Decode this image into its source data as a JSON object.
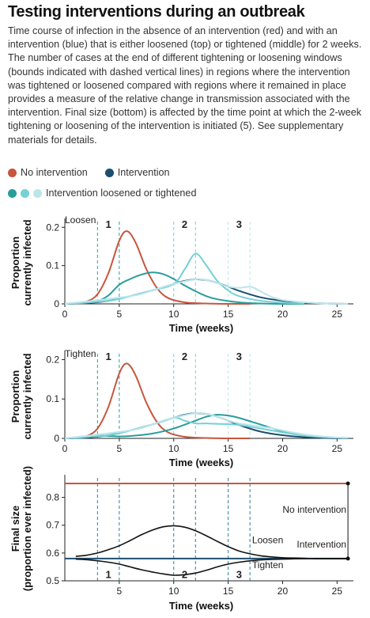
{
  "header": {
    "title": "Testing interventions during an outbreak",
    "caption": "Time course of infection in the absence of an intervention (red) and with an intervention (blue) that is either loosened (top) or tightened (middle) for 2 weeks. The number of cases at the end of different tightening or loosening windows (bounds indicated with dashed vertical lines) in regions where the intervention was tightened or loosened compared with regions where it remained in place provides a measure of the relative change in transmission associated with the intervention. Final size (bottom) is affected by the time point at which the 2-week tightening or loosening of the intervention is initiated (5). See supplementary materials for details."
  },
  "legend": {
    "no_intervention": "No intervention",
    "intervention": "Intervention",
    "window": "Intervention loosened or tightened"
  },
  "colors": {
    "no_intervention": "#c8553d",
    "intervention": "#1d4e6e",
    "window_1": "#2a9d9a",
    "window_2": "#76d0d4",
    "window_3": "#b9e6ec",
    "baseline": "#1d4e6e",
    "final_curve": "#111111"
  },
  "chart_data": [
    {
      "type": "line",
      "panel": "Loosen",
      "xlabel": "Time (weeks)",
      "ylabel": "Proportion currently infected",
      "xlim": [
        0,
        26.5
      ],
      "ylim": [
        0,
        0.215
      ],
      "xticks": [
        0,
        5,
        10,
        15,
        20,
        25
      ],
      "yticks": [
        0,
        0.1,
        0.2
      ],
      "ytick_labels": [
        "0",
        "0.1",
        "0.2"
      ],
      "windows": [
        {
          "label": "1",
          "start": 3,
          "end": 5
        },
        {
          "label": "2",
          "start": 10,
          "end": 12
        },
        {
          "label": "3",
          "start": 15,
          "end": 17
        }
      ],
      "series": [
        {
          "key": "no_intervention",
          "x": [
            0,
            1,
            2,
            3,
            4,
            5,
            5.7,
            6.5,
            7.5,
            8.5,
            9.5,
            11,
            13,
            15,
            17
          ],
          "y": [
            0,
            0.001,
            0.006,
            0.025,
            0.08,
            0.165,
            0.19,
            0.16,
            0.09,
            0.04,
            0.015,
            0.004,
            0.001,
            0,
            0
          ]
        },
        {
          "key": "intervention",
          "x": [
            0,
            2,
            4,
            6,
            8,
            10,
            11,
            12,
            13,
            14,
            15,
            16,
            18,
            20,
            22,
            24,
            26
          ],
          "y": [
            0,
            0.002,
            0.008,
            0.02,
            0.035,
            0.052,
            0.06,
            0.064,
            0.062,
            0.055,
            0.045,
            0.034,
            0.017,
            0.008,
            0.003,
            0.001,
            0
          ]
        },
        {
          "key": "window_1",
          "x": [
            0,
            2,
            3,
            4,
            5,
            6,
            7,
            8,
            9,
            10,
            11,
            12,
            13,
            14,
            16,
            18,
            20,
            22
          ],
          "y": [
            0,
            0.003,
            0.007,
            0.022,
            0.05,
            0.065,
            0.076,
            0.082,
            0.078,
            0.065,
            0.048,
            0.033,
            0.02,
            0.012,
            0.004,
            0.001,
            0,
            0
          ]
        },
        {
          "key": "window_2",
          "x": [
            0,
            4,
            6,
            8,
            10,
            11,
            12,
            13,
            14,
            15,
            16,
            18,
            20,
            22
          ],
          "y": [
            0,
            0.008,
            0.02,
            0.035,
            0.052,
            0.09,
            0.131,
            0.1,
            0.06,
            0.035,
            0.02,
            0.008,
            0.003,
            0.001
          ]
        },
        {
          "key": "window_3",
          "x": [
            0,
            6,
            8,
            10,
            12,
            13,
            14,
            15,
            16,
            17,
            17.5,
            18,
            19,
            20,
            22,
            24,
            26
          ],
          "y": [
            0,
            0.02,
            0.035,
            0.052,
            0.064,
            0.062,
            0.055,
            0.045,
            0.042,
            0.045,
            0.04,
            0.032,
            0.018,
            0.01,
            0.004,
            0.001,
            0
          ]
        }
      ]
    },
    {
      "type": "line",
      "panel": "Tighten",
      "xlabel": "Time (weeks)",
      "ylabel": "Proportion currently infected",
      "xlim": [
        0,
        26.5
      ],
      "ylim": [
        0,
        0.215
      ],
      "xticks": [
        0,
        5,
        10,
        15,
        20,
        25
      ],
      "yticks": [
        0,
        0.1,
        0.2
      ],
      "ytick_labels": [
        "0",
        "0.1",
        "0.2"
      ],
      "windows": [
        {
          "label": "1",
          "start": 3,
          "end": 5
        },
        {
          "label": "2",
          "start": 10,
          "end": 12
        },
        {
          "label": "3",
          "start": 15,
          "end": 17
        }
      ],
      "series": [
        {
          "key": "no_intervention",
          "x": [
            0,
            1,
            2,
            3,
            4,
            5,
            5.7,
            6.5,
            7.5,
            8.5,
            9.5,
            11,
            13,
            15,
            17
          ],
          "y": [
            0,
            0.001,
            0.006,
            0.025,
            0.08,
            0.165,
            0.19,
            0.16,
            0.09,
            0.04,
            0.015,
            0.004,
            0.001,
            0,
            0
          ]
        },
        {
          "key": "intervention",
          "x": [
            0,
            2,
            4,
            6,
            8,
            10,
            11,
            12,
            13,
            14,
            15,
            16,
            18,
            20,
            22,
            24,
            26
          ],
          "y": [
            0,
            0.002,
            0.008,
            0.02,
            0.035,
            0.052,
            0.06,
            0.064,
            0.062,
            0.055,
            0.045,
            0.034,
            0.017,
            0.008,
            0.003,
            0.001,
            0
          ]
        },
        {
          "key": "window_1",
          "x": [
            0,
            2,
            3,
            4,
            5,
            6,
            8,
            10,
            12,
            13,
            14,
            15,
            16,
            18,
            20,
            22,
            24,
            26
          ],
          "y": [
            0,
            0.003,
            0.007,
            0.006,
            0.005,
            0.006,
            0.012,
            0.025,
            0.045,
            0.055,
            0.06,
            0.058,
            0.052,
            0.035,
            0.018,
            0.008,
            0.003,
            0.001
          ]
        },
        {
          "key": "window_2",
          "x": [
            0,
            4,
            6,
            8,
            10,
            11,
            12,
            13,
            14,
            16,
            18,
            20,
            22,
            24,
            26
          ],
          "y": [
            0,
            0.008,
            0.02,
            0.035,
            0.052,
            0.045,
            0.038,
            0.038,
            0.037,
            0.034,
            0.025,
            0.015,
            0.007,
            0.003,
            0.001
          ]
        },
        {
          "key": "window_3",
          "x": [
            0,
            6,
            8,
            10,
            12,
            13,
            14,
            15,
            16,
            17,
            18,
            19,
            20,
            22,
            24,
            26
          ],
          "y": [
            0,
            0.02,
            0.035,
            0.052,
            0.064,
            0.062,
            0.055,
            0.045,
            0.038,
            0.034,
            0.03,
            0.026,
            0.02,
            0.01,
            0.004,
            0.001
          ]
        }
      ]
    },
    {
      "type": "line",
      "panel": "Final size",
      "xlabel": "Time (weeks)",
      "ylabel": "Final size (proportion ever infected)",
      "xlim": [
        0,
        26.5
      ],
      "ylim": [
        0.5,
        0.87
      ],
      "xticks": [
        5,
        10,
        15,
        20,
        25
      ],
      "yticks": [
        0.5,
        0.6,
        0.7,
        0.8
      ],
      "ytick_labels": [
        "0.5",
        "0.6",
        "0.7",
        "0.8"
      ],
      "windows": [
        {
          "label": "1",
          "start": 3,
          "end": 5
        },
        {
          "label": "2",
          "start": 10,
          "end": 12
        },
        {
          "label": "3",
          "start": 15,
          "end": 17
        }
      ],
      "series": [
        {
          "key": "no_intervention",
          "label": "No intervention",
          "x": [
            0,
            26
          ],
          "y": [
            0.85,
            0.85
          ]
        },
        {
          "key": "baseline",
          "label": "Intervention",
          "x": [
            0,
            26
          ],
          "y": [
            0.58,
            0.58
          ]
        },
        {
          "key": "loosen",
          "label": "Loosen",
          "x": [
            1,
            2,
            3,
            4,
            5,
            6,
            7,
            8,
            9,
            10,
            11,
            12,
            13,
            14,
            15,
            16,
            17,
            18,
            19,
            20,
            21,
            22,
            23,
            24,
            25,
            26
          ],
          "y": [
            0.588,
            0.592,
            0.6,
            0.612,
            0.626,
            0.645,
            0.665,
            0.682,
            0.694,
            0.698,
            0.693,
            0.68,
            0.662,
            0.642,
            0.623,
            0.607,
            0.597,
            0.59,
            0.586,
            0.583,
            0.582,
            0.581,
            0.58,
            0.58,
            0.58,
            0.58
          ]
        },
        {
          "key": "tighten",
          "label": "Tighten",
          "x": [
            1,
            2,
            3,
            4,
            5,
            6,
            7,
            8,
            9,
            10,
            11,
            12,
            13,
            14,
            15,
            16,
            17,
            18,
            19,
            20,
            21,
            22,
            23,
            24,
            25,
            26
          ],
          "y": [
            0.578,
            0.576,
            0.572,
            0.567,
            0.56,
            0.55,
            0.54,
            0.532,
            0.525,
            0.52,
            0.522,
            0.528,
            0.538,
            0.55,
            0.56,
            0.567,
            0.572,
            0.575,
            0.577,
            0.578,
            0.579,
            0.58,
            0.58,
            0.58,
            0.58,
            0.58
          ]
        }
      ]
    }
  ]
}
